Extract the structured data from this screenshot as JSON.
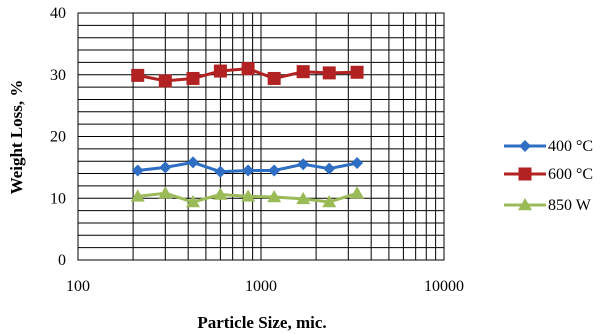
{
  "chart_data": {
    "type": "line",
    "title": "",
    "xlabel": "Particle Size, mic.",
    "ylabel": "Weight Loss, %",
    "xscale": "log",
    "xlim": [
      100,
      10000
    ],
    "ylim": [
      0,
      40
    ],
    "x_ticks": [
      "100",
      "1000",
      "10000"
    ],
    "y_ticks": [
      "0",
      "10",
      "20",
      "30",
      "40"
    ],
    "grid": true,
    "legend_position": "right",
    "x": [
      212,
      300,
      425,
      600,
      850,
      1180,
      1700,
      2360,
      3350
    ],
    "series": [
      {
        "name": "400 °C",
        "color": "#2e6fc4",
        "marker": "diamond",
        "values": [
          14.5,
          15.0,
          15.8,
          14.3,
          14.5,
          14.5,
          15.5,
          14.8,
          15.7
        ]
      },
      {
        "name": "600 °C",
        "color": "#b22222",
        "marker": "square",
        "values": [
          29.9,
          29.0,
          29.4,
          30.6,
          31.0,
          29.4,
          30.5,
          30.3,
          30.4
        ]
      },
      {
        "name": "850 W",
        "color": "#9bbb59",
        "marker": "triangle",
        "values": [
          10.3,
          10.8,
          9.4,
          10.6,
          10.3,
          10.2,
          9.9,
          9.4,
          10.8
        ]
      }
    ]
  }
}
